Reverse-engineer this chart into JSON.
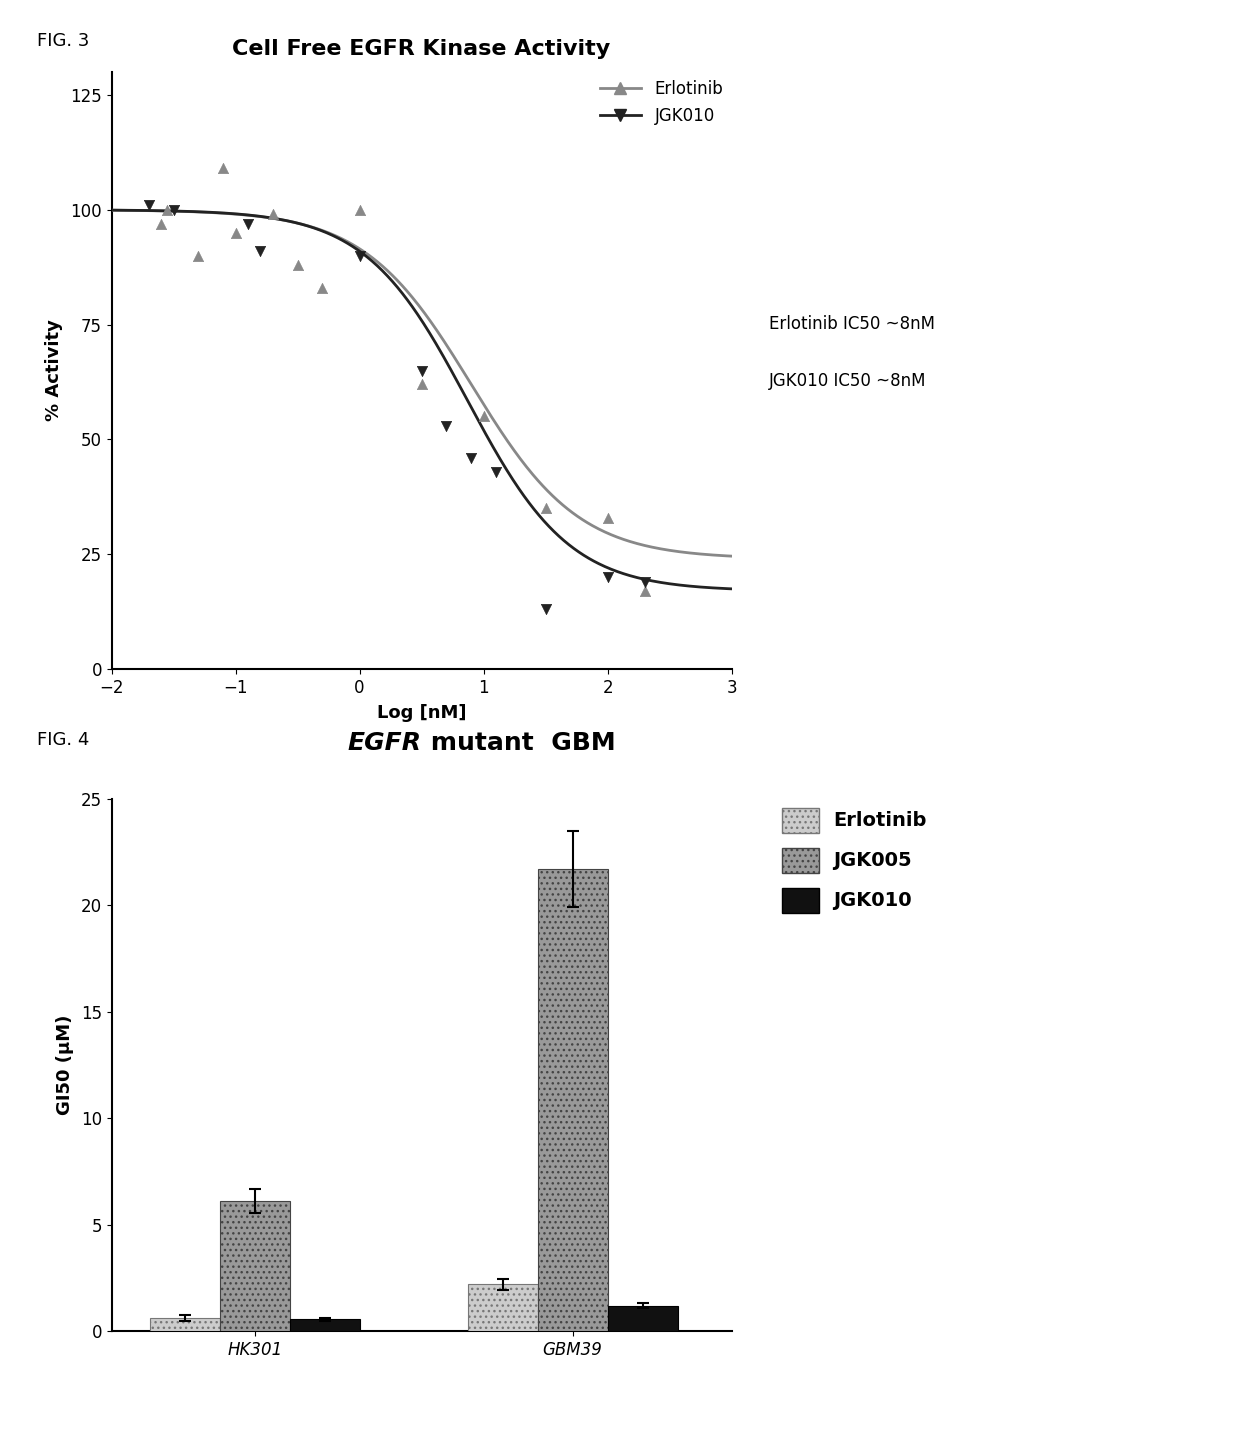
{
  "fig3": {
    "title": "Cell Free EGFR Kinase Activity",
    "xlabel": "Log [nM]",
    "ylabel": "% Activity",
    "xlim": [
      -2,
      3
    ],
    "ylim": [
      0,
      130
    ],
    "yticks": [
      0,
      25,
      50,
      75,
      100,
      125
    ],
    "xticks": [
      -2,
      -1,
      0,
      1,
      2,
      3
    ],
    "erlotinib_scatter_x": [
      -1.6,
      -1.55,
      -1.3,
      -1.1,
      -1.0,
      -0.7,
      -0.5,
      -0.3,
      0.0,
      0.5,
      1.0,
      1.5,
      2.0,
      2.3
    ],
    "erlotinib_scatter_y": [
      97,
      100,
      90,
      109,
      95,
      99,
      88,
      83,
      100,
      62,
      55,
      35,
      33,
      17
    ],
    "jgk010_scatter_x": [
      -1.7,
      -1.5,
      -0.9,
      -0.8,
      0.0,
      0.5,
      0.7,
      0.9,
      1.1,
      1.5,
      2.0,
      2.3
    ],
    "jgk010_scatter_y": [
      101,
      100,
      97,
      91,
      90,
      65,
      53,
      46,
      43,
      13,
      20,
      19
    ],
    "erlotinib_color": "#888888",
    "jgk010_color": "#222222",
    "annotation1": "Erlotinib IC50 ~8nM",
    "annotation2": "JGK010 IC50 ~8nM",
    "legend_erlotinib": "Erlotinib",
    "legend_jgk010": "JGK010"
  },
  "fig4": {
    "title_italic": "EGFR",
    "title_rest": "mutant  GBM",
    "ylabel": "GI50 (μM)",
    "ylim": [
      0,
      25
    ],
    "yticks": [
      0,
      5,
      10,
      15,
      20,
      25
    ],
    "categories": [
      "HK301",
      "GBM39"
    ],
    "erlotinib_values": [
      0.6,
      2.2
    ],
    "jgk005_values": [
      6.1,
      21.7
    ],
    "jgk010_values": [
      0.55,
      1.2
    ],
    "erlotinib_err": [
      0.15,
      0.25
    ],
    "jgk005_err": [
      0.55,
      1.8
    ],
    "jgk010_err": [
      0.06,
      0.12
    ],
    "erlotinib_color": "#cccccc",
    "jgk005_color": "#999999",
    "jgk010_color": "#111111",
    "legend_erlotinib": "Erlotinib",
    "legend_jgk005": "JGK005",
    "legend_jgk010": "JGK010"
  },
  "fig3_label": "FIG. 3",
  "fig4_label": "FIG. 4",
  "background_color": "#ffffff"
}
